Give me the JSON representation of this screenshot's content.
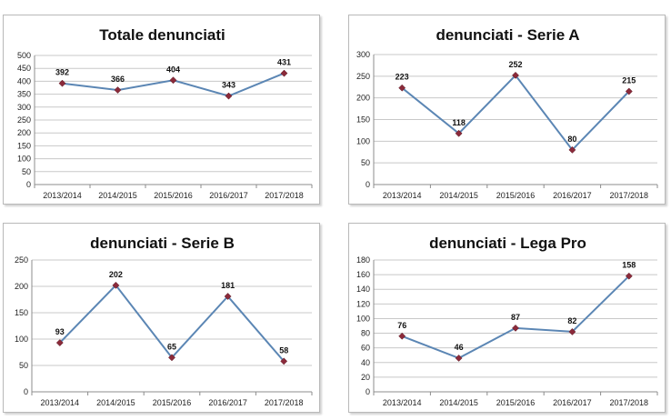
{
  "chart_data": [
    {
      "type": "line",
      "title": "Totale denunciati",
      "categories": [
        "2013/2014",
        "2014/2015",
        "2015/2016",
        "2016/2017",
        "2017/2018"
      ],
      "values": [
        392,
        366,
        404,
        343,
        431
      ],
      "ylim": [
        0,
        500
      ],
      "ystep": 50,
      "y_ticks": [
        "0",
        "50",
        "100",
        "150",
        "200",
        "250",
        "300",
        "350",
        "400",
        "450",
        "500"
      ],
      "data_labels": [
        "392",
        "366",
        "404",
        "343",
        "431"
      ],
      "grid": true,
      "legend": "none",
      "line_color": "#5b86b4",
      "marker_color": "#8b2a3a"
    },
    {
      "type": "line",
      "title": "denunciati - Serie A",
      "categories": [
        "2013/2014",
        "2014/2015",
        "2015/2016",
        "2016/2017",
        "2017/2018"
      ],
      "values": [
        223,
        118,
        252,
        80,
        215
      ],
      "ylim": [
        0,
        300
      ],
      "ystep": 50,
      "y_ticks": [
        "0",
        "50",
        "100",
        "150",
        "200",
        "250",
        "300"
      ],
      "data_labels": [
        "223",
        "118",
        "252",
        "80",
        "215"
      ],
      "grid": true,
      "legend": "none",
      "line_color": "#5b86b4",
      "marker_color": "#8b2a3a"
    },
    {
      "type": "line",
      "title": "denunciati - Serie B",
      "categories": [
        "2013/2014",
        "2014/2015",
        "2015/2016",
        "2016/2017",
        "2017/2018"
      ],
      "values": [
        93,
        202,
        65,
        181,
        58
      ],
      "ylim": [
        0,
        250
      ],
      "ystep": 50,
      "y_ticks": [
        "0",
        "50",
        "100",
        "150",
        "200",
        "250"
      ],
      "data_labels": [
        "93",
        "202",
        "65",
        "181",
        "58"
      ],
      "grid": true,
      "legend": "none",
      "line_color": "#5b86b4",
      "marker_color": "#8b2a3a"
    },
    {
      "type": "line",
      "title": "denunciati - Lega Pro",
      "categories": [
        "2013/2014",
        "2014/2015",
        "2015/2016",
        "2016/2017",
        "2017/2018"
      ],
      "values": [
        76,
        46,
        87,
        82,
        158
      ],
      "ylim": [
        0,
        180
      ],
      "ystep": 20,
      "y_ticks": [
        "0",
        "20",
        "40",
        "60",
        "80",
        "100",
        "120",
        "140",
        "160",
        "180"
      ],
      "data_labels": [
        "76",
        "46",
        "87",
        "82",
        "158"
      ],
      "grid": true,
      "legend": "none",
      "line_color": "#5b86b4",
      "marker_color": "#8b2a3a"
    }
  ]
}
